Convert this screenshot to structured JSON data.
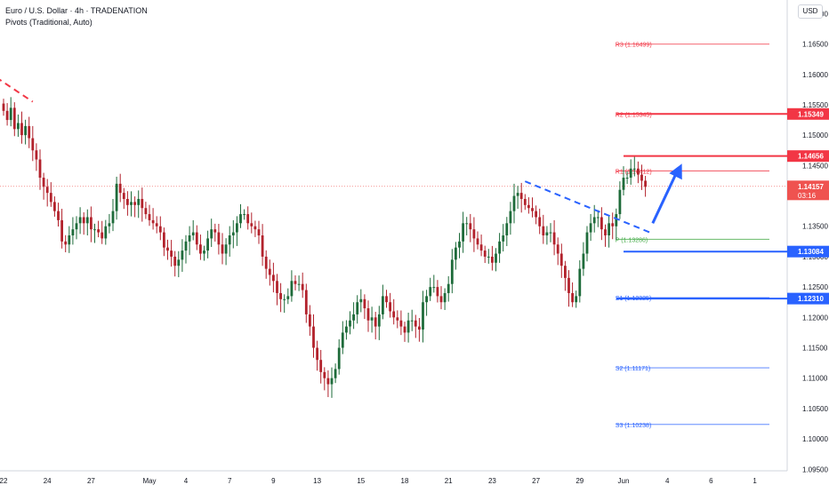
{
  "header": {
    "title": "Euro / U.S. Dollar · 4h · TRADENATION",
    "indicator": "Pivots (Traditional, Auto)",
    "currency_button": "USD"
  },
  "colors": {
    "up": "#26a69a",
    "down": "#ef5350",
    "candle_up": "#1e6b3a",
    "candle_down": "#b2222c",
    "resistance": "#f23645",
    "support": "#2962ff",
    "pivot": "#4caf50",
    "pivot_r": "#f23645",
    "pivot_s": "#2962ff",
    "grid": "#f0f3fa"
  },
  "chart_data": {
    "type": "candlestick",
    "symbol": "EURUSD",
    "timeframe": "4h",
    "ylim": [
      1.09475,
      1.17225
    ],
    "y_ticks": [
      "1.17000",
      "1.16500",
      "1.16000",
      "1.15500",
      "1.15000",
      "1.14500",
      "1.14000",
      "1.13500",
      "1.13000",
      "1.12500",
      "1.12000",
      "1.11500",
      "1.11000",
      "1.10500",
      "1.10000",
      "1.09500"
    ],
    "x_ticks": [
      {
        "label": "22",
        "bar": 0
      },
      {
        "label": "24",
        "bar": 12
      },
      {
        "label": "27",
        "bar": 24
      },
      {
        "label": "May",
        "bar": 40
      },
      {
        "label": "4",
        "bar": 50
      },
      {
        "label": "7",
        "bar": 62
      },
      {
        "label": "9",
        "bar": 74
      },
      {
        "label": "13",
        "bar": 86
      },
      {
        "label": "15",
        "bar": 98
      },
      {
        "label": "18",
        "bar": 110
      },
      {
        "label": "21",
        "bar": 122
      },
      {
        "label": "23",
        "bar": 134
      },
      {
        "label": "27",
        "bar": 146
      },
      {
        "label": "29",
        "bar": 158
      },
      {
        "label": "Jun",
        "bar": 170
      },
      {
        "label": "4",
        "bar": 182
      },
      {
        "label": "6",
        "bar": 194
      },
      {
        "label": "1",
        "bar": 206
      }
    ],
    "bar_count_visible": 216,
    "closes": [
      1.154,
      1.1525,
      1.1545,
      1.151,
      1.152,
      1.15,
      1.1515,
      1.1495,
      1.1475,
      1.146,
      1.143,
      1.1415,
      1.1405,
      1.139,
      1.1375,
      1.136,
      1.1325,
      1.132,
      1.1335,
      1.1345,
      1.1355,
      1.1365,
      1.1355,
      1.1365,
      1.1345,
      1.1345,
      1.134,
      1.133,
      1.135,
      1.1355,
      1.1375,
      1.142,
      1.1405,
      1.1395,
      1.1385,
      1.139,
      1.1385,
      1.1395,
      1.138,
      1.137,
      1.136,
      1.1355,
      1.135,
      1.134,
      1.1315,
      1.131,
      1.13,
      1.1285,
      1.1295,
      1.131,
      1.1325,
      1.1335,
      1.134,
      1.132,
      1.1305,
      1.131,
      1.133,
      1.1345,
      1.134,
      1.132,
      1.1305,
      1.132,
      1.1335,
      1.134,
      1.1355,
      1.137,
      1.137,
      1.1355,
      1.135,
      1.1345,
      1.1335,
      1.13,
      1.128,
      1.127,
      1.126,
      1.124,
      1.123,
      1.123,
      1.1235,
      1.126,
      1.1255,
      1.1255,
      1.1245,
      1.1205,
      1.1185,
      1.115,
      1.113,
      1.111,
      1.11,
      1.109,
      1.11,
      1.1115,
      1.115,
      1.1175,
      1.1185,
      1.1195,
      1.1205,
      1.1225,
      1.123,
      1.1215,
      1.1195,
      1.12,
      1.1185,
      1.1205,
      1.1235,
      1.1225,
      1.121,
      1.12,
      1.1195,
      1.1185,
      1.1175,
      1.1195,
      1.1195,
      1.1185,
      1.118,
      1.1225,
      1.1235,
      1.125,
      1.125,
      1.1235,
      1.1225,
      1.124,
      1.1255,
      1.1295,
      1.1315,
      1.1325,
      1.1355,
      1.1355,
      1.1345,
      1.133,
      1.132,
      1.131,
      1.13,
      1.13,
      1.129,
      1.1305,
      1.1325,
      1.1335,
      1.1355,
      1.1375,
      1.14,
      1.1405,
      1.1395,
      1.1385,
      1.138,
      1.1375,
      1.1365,
      1.135,
      1.1335,
      1.134,
      1.134,
      1.132,
      1.1305,
      1.1285,
      1.1265,
      1.124,
      1.1225,
      1.1235,
      1.128,
      1.1305,
      1.134,
      1.1355,
      1.1365,
      1.1365,
      1.1345,
      1.1335,
      1.1355,
      1.135,
      1.137,
      1.141,
      1.143,
      1.143,
      1.1445,
      1.1445,
      1.1435,
      1.1425,
      1.1415
    ],
    "current_price": 1.14157,
    "countdown": "03:16",
    "pivots": [
      {
        "label": "R3 (1.16499)",
        "value": 1.16499,
        "kind": "r"
      },
      {
        "label": "R2 (1.15345)",
        "value": 1.15345,
        "kind": "r"
      },
      {
        "label": "R1 (1.14412)",
        "value": 1.14412,
        "kind": "r"
      },
      {
        "label": "P (1.13286)",
        "value": 1.13286,
        "kind": "p"
      },
      {
        "label": "S1 (1.12325)",
        "value": 1.12325,
        "kind": "s"
      },
      {
        "label": "S2 (1.11171)",
        "value": 1.11171,
        "kind": "s"
      },
      {
        "label": "S3 (1.10238)",
        "value": 1.10238,
        "kind": "s"
      }
    ],
    "levels": [
      {
        "value": 1.15349,
        "label": "1.15349",
        "kind": "resistance",
        "start_bar": 168
      },
      {
        "value": 1.14656,
        "label": "1.14656",
        "kind": "resistance",
        "start_bar": 170
      },
      {
        "value": 1.13084,
        "label": "1.13084",
        "kind": "support",
        "start_bar": 170
      },
      {
        "value": 1.1231,
        "label": "1.12310",
        "kind": "support",
        "start_bar": 168
      }
    ],
    "trendlines": [
      {
        "kind": "resistance",
        "from": {
          "bar": -2,
          "value": 1.1595
        },
        "to": {
          "bar": 8,
          "value": 1.1555
        }
      },
      {
        "kind": "support",
        "from": {
          "bar": 143,
          "value": 1.1424
        },
        "to": {
          "bar": 178,
          "value": 1.1338
        }
      }
    ],
    "arrow": {
      "from": {
        "bar": 178,
        "value": 1.1355
      },
      "to": {
        "bar": 186,
        "value": 1.1453
      }
    }
  }
}
